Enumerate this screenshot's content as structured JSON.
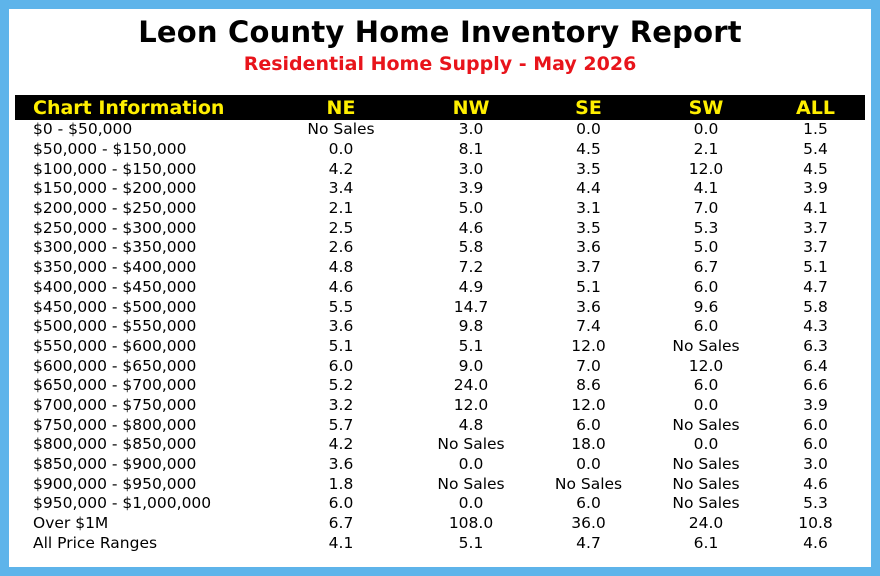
{
  "title": "Leon County Home Inventory Report",
  "subtitle": "Residential Home Supply - May 2026",
  "colors": {
    "background": "#5eb4ea",
    "header_bg": "#000000",
    "header_text": "#ffef00",
    "subtitle": "#e8141b"
  },
  "chart_data": {
    "type": "table",
    "title": "Leon County Home Inventory Report",
    "subtitle": "Residential Home Supply - May 2026",
    "columns": [
      "Chart Information",
      "NE",
      "NW",
      "SE",
      "SW",
      "ALL"
    ],
    "rows": [
      [
        "$0 - $50,000",
        "No Sales",
        "3.0",
        "0.0",
        "0.0",
        "1.5"
      ],
      [
        "$50,000 - $150,000",
        "0.0",
        "8.1",
        "4.5",
        "2.1",
        "5.4"
      ],
      [
        "$100,000 - $150,000",
        "4.2",
        "3.0",
        "3.5",
        "12.0",
        "4.5"
      ],
      [
        "$150,000 - $200,000",
        "3.4",
        "3.9",
        "4.4",
        "4.1",
        "3.9"
      ],
      [
        "$200,000 - $250,000",
        "2.1",
        "5.0",
        "3.1",
        "7.0",
        "4.1"
      ],
      [
        "$250,000 - $300,000",
        "2.5",
        "4.6",
        "3.5",
        "5.3",
        "3.7"
      ],
      [
        "$300,000 - $350,000",
        "2.6",
        "5.8",
        "3.6",
        "5.0",
        "3.7"
      ],
      [
        "$350,000 - $400,000",
        "4.8",
        "7.2",
        "3.7",
        "6.7",
        "5.1"
      ],
      [
        "$400,000 - $450,000",
        "4.6",
        "4.9",
        "5.1",
        "6.0",
        "4.7"
      ],
      [
        "$450,000 - $500,000",
        "5.5",
        "14.7",
        "3.6",
        "9.6",
        "5.8"
      ],
      [
        "$500,000 - $550,000",
        "3.6",
        "9.8",
        "7.4",
        "6.0",
        "4.3"
      ],
      [
        "$550,000 - $600,000",
        "5.1",
        "5.1",
        "12.0",
        "No Sales",
        "6.3"
      ],
      [
        "$600,000 - $650,000",
        "6.0",
        "9.0",
        "7.0",
        "12.0",
        "6.4"
      ],
      [
        "$650,000 - $700,000",
        "5.2",
        "24.0",
        "8.6",
        "6.0",
        "6.6"
      ],
      [
        "$700,000 - $750,000",
        "3.2",
        "12.0",
        "12.0",
        "0.0",
        "3.9"
      ],
      [
        "$750,000 - $800,000",
        "5.7",
        "4.8",
        "6.0",
        "No Sales",
        "6.0"
      ],
      [
        "$800,000 - $850,000",
        "4.2",
        "No Sales",
        "18.0",
        "0.0",
        "6.0"
      ],
      [
        "$850,000 - $900,000",
        "3.6",
        "0.0",
        "0.0",
        "No Sales",
        "3.0"
      ],
      [
        "$900,000 - $950,000",
        "1.8",
        "No Sales",
        "No Sales",
        "No Sales",
        "4.6"
      ],
      [
        "$950,000 - $1,000,000",
        "6.0",
        "0.0",
        "6.0",
        "No Sales",
        "5.3"
      ],
      [
        "Over $1M",
        "6.7",
        "108.0",
        "36.0",
        "24.0",
        "10.8"
      ],
      [
        "All Price Ranges",
        "4.1",
        "5.1",
        "4.7",
        "6.1",
        "4.6"
      ]
    ]
  }
}
